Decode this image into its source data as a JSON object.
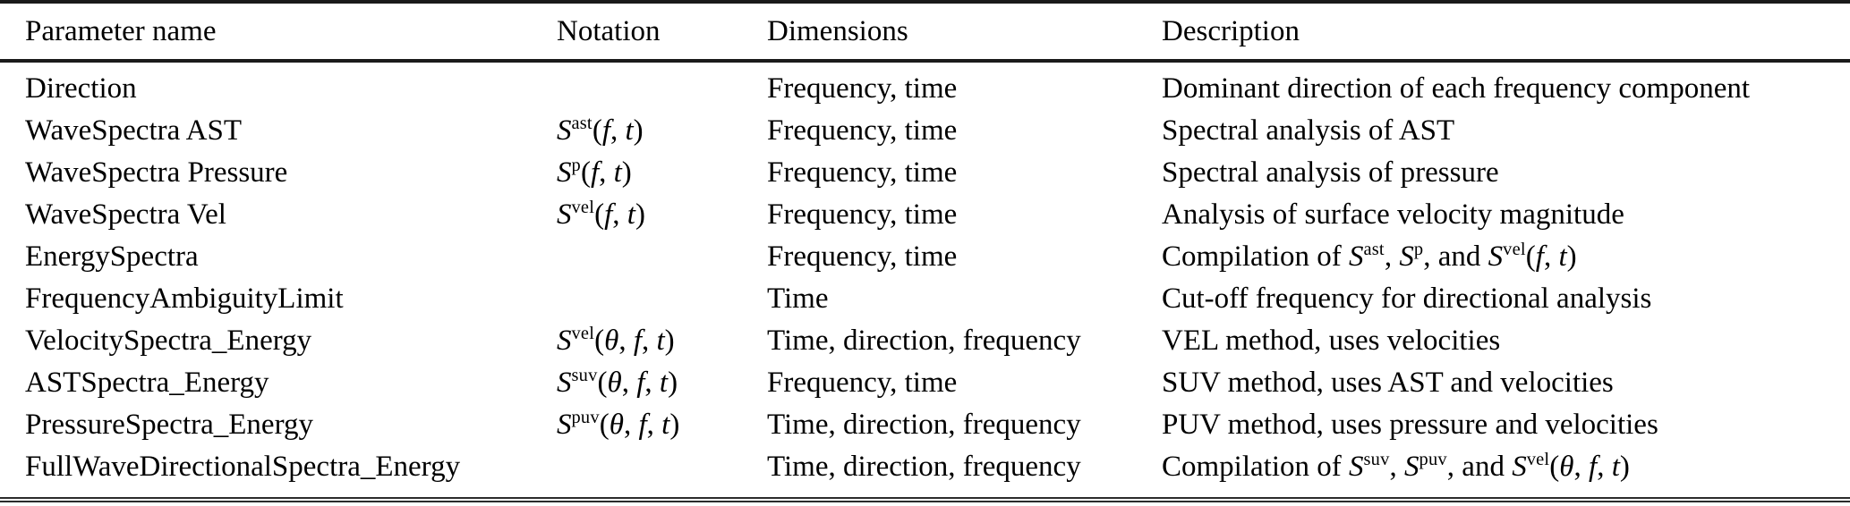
{
  "colors": {
    "background": "#ffffff",
    "text": "#000000",
    "rule": "#1a1a1a"
  },
  "table": {
    "columns": [
      {
        "key": "param",
        "label": "Parameter name"
      },
      {
        "key": "notation",
        "label": "Notation"
      },
      {
        "key": "dimensions",
        "label": "Dimensions"
      },
      {
        "key": "description",
        "label": "Description"
      }
    ],
    "rows": [
      {
        "param": "Direction",
        "notation": null,
        "dimensions": "Frequency, time",
        "description": "Dominant direction of each frequency component"
      },
      {
        "param": "WaveSpectra AST",
        "notation": {
          "base": "S",
          "sup": "ast",
          "args": [
            "f",
            "t"
          ]
        },
        "dimensions": "Frequency, time",
        "description": "Spectral analysis of AST"
      },
      {
        "param": "WaveSpectra Pressure",
        "notation": {
          "base": "S",
          "sup": "p",
          "args": [
            "f",
            "t"
          ]
        },
        "dimensions": "Frequency, time",
        "description": "Spectral analysis of pressure"
      },
      {
        "param": "WaveSpectra Vel",
        "notation": {
          "base": "S",
          "sup": "vel",
          "args": [
            "f",
            "t"
          ]
        },
        "dimensions": "Frequency, time",
        "description": "Analysis of surface velocity magnitude"
      },
      {
        "param": "EnergySpectra",
        "notation": null,
        "dimensions": "Frequency, time",
        "description": [
          {
            "text": "Compilation of "
          },
          {
            "math": {
              "base": "S",
              "sup": "ast"
            }
          },
          {
            "text": ", "
          },
          {
            "math": {
              "base": "S",
              "sup": "p"
            }
          },
          {
            "text": ", and "
          },
          {
            "math": {
              "base": "S",
              "sup": "vel",
              "args": [
                "f",
                "t"
              ]
            }
          }
        ]
      },
      {
        "param": "FrequencyAmbiguityLimit",
        "notation": null,
        "dimensions": "Time",
        "description": "Cut-off frequency for directional analysis"
      },
      {
        "param": "VelocitySpectra_Energy",
        "notation": {
          "base": "S",
          "sup": "vel",
          "args": [
            "θ",
            "f",
            "t"
          ]
        },
        "dimensions": "Time, direction, frequency",
        "description": "VEL method, uses velocities"
      },
      {
        "param": "ASTSpectra_Energy",
        "notation": {
          "base": "S",
          "sup": "suv",
          "args": [
            "θ",
            "f",
            "t"
          ]
        },
        "dimensions": "Frequency, time",
        "description": "SUV method, uses AST and velocities"
      },
      {
        "param": "PressureSpectra_Energy",
        "notation": {
          "base": "S",
          "sup": "puv",
          "args": [
            "θ",
            "f",
            "t"
          ]
        },
        "dimensions": "Time, direction, frequency",
        "description": "PUV method, uses pressure and velocities"
      },
      {
        "param": "FullWaveDirectionalSpectra_Energy",
        "notation": null,
        "dimensions": "Time, direction, frequency",
        "description": [
          {
            "text": "Compilation of "
          },
          {
            "math": {
              "base": "S",
              "sup": "suv"
            }
          },
          {
            "text": ", "
          },
          {
            "math": {
              "base": "S",
              "sup": "puv"
            }
          },
          {
            "text": ", and "
          },
          {
            "math": {
              "base": "S",
              "sup": "vel",
              "args": [
                "θ",
                "f",
                "t"
              ]
            }
          }
        ]
      }
    ]
  }
}
